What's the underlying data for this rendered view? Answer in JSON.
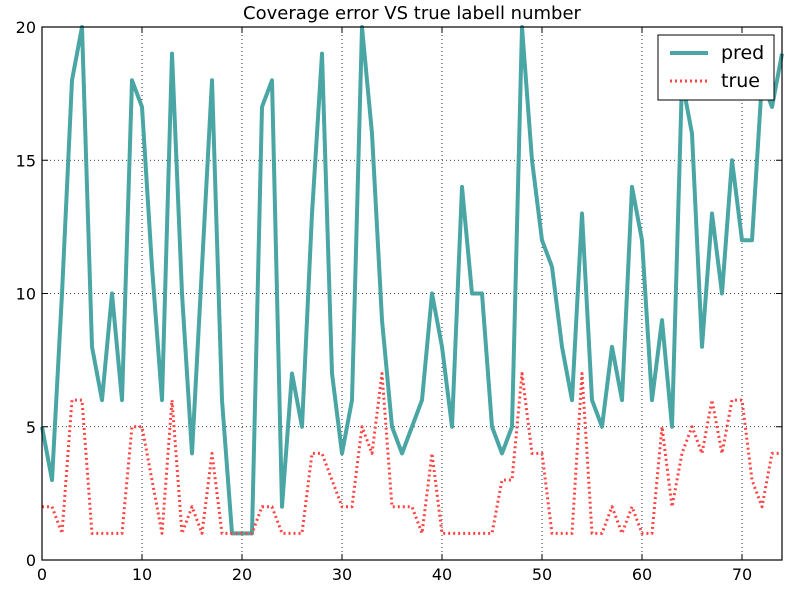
{
  "chart_data": {
    "type": "line",
    "title": "Coverage error VS true labell number",
    "xlabel": "",
    "ylabel": "",
    "xlim": [
      0,
      74
    ],
    "ylim": [
      0,
      20
    ],
    "xticks": [
      "0",
      "10",
      "20",
      "30",
      "40",
      "50",
      "60",
      "70"
    ],
    "yticks": [
      "0",
      "5",
      "10",
      "15",
      "20"
    ],
    "grid": true,
    "legend_position": "top-right",
    "series": [
      {
        "name": "pred",
        "color": "#4aa6a4",
        "line_style": "solid",
        "x": [
          0,
          1,
          2,
          3,
          4,
          5,
          6,
          7,
          8,
          9,
          10,
          11,
          12,
          13,
          14,
          15,
          16,
          17,
          18,
          19,
          20,
          21,
          22,
          23,
          24,
          25,
          26,
          27,
          28,
          29,
          30,
          31,
          32,
          33,
          34,
          35,
          36,
          37,
          38,
          39,
          40,
          41,
          42,
          43,
          44,
          45,
          46,
          47,
          48,
          49,
          50,
          51,
          52,
          53,
          54,
          55,
          56,
          57,
          58,
          59,
          60,
          61,
          62,
          63,
          64,
          65,
          66,
          67,
          68,
          69,
          70,
          71,
          72,
          73,
          74
        ],
        "values": [
          5,
          3,
          10,
          18,
          20,
          8,
          6,
          10,
          6,
          18,
          17,
          11,
          6,
          19,
          10,
          4,
          11,
          18,
          6,
          1,
          1,
          1,
          17,
          18,
          2,
          7,
          5,
          13,
          19,
          7,
          4,
          6,
          20,
          16,
          9,
          5,
          4,
          5,
          6,
          10,
          8,
          5,
          14,
          10,
          10,
          5,
          4,
          5,
          20,
          15,
          12,
          11,
          8,
          6,
          13,
          6,
          5,
          8,
          6,
          14,
          12,
          6,
          9,
          5,
          18,
          16,
          8,
          13,
          10,
          15,
          12,
          12,
          18,
          17,
          19
        ]
      },
      {
        "name": "true",
        "color": "#ff4444",
        "line_style": "dotted",
        "x": [
          0,
          1,
          2,
          3,
          4,
          5,
          6,
          7,
          8,
          9,
          10,
          11,
          12,
          13,
          14,
          15,
          16,
          17,
          18,
          19,
          20,
          21,
          22,
          23,
          24,
          25,
          26,
          27,
          28,
          29,
          30,
          31,
          32,
          33,
          34,
          35,
          36,
          37,
          38,
          39,
          40,
          41,
          42,
          43,
          44,
          45,
          46,
          47,
          48,
          49,
          50,
          51,
          52,
          53,
          54,
          55,
          56,
          57,
          58,
          59,
          60,
          61,
          62,
          63,
          64,
          65,
          66,
          67,
          68,
          69,
          70,
          71,
          72,
          73,
          74
        ],
        "values": [
          2,
          2,
          1,
          6,
          6,
          1,
          1,
          1,
          1,
          5,
          5,
          3,
          1,
          6,
          1,
          2,
          1,
          4,
          1,
          1,
          1,
          1,
          2,
          2,
          1,
          1,
          1,
          4,
          4,
          3,
          2,
          2,
          5,
          4,
          7,
          2,
          2,
          2,
          1,
          4,
          1,
          1,
          1,
          1,
          1,
          1,
          3,
          3,
          7,
          4,
          4,
          1,
          1,
          1,
          7,
          1,
          1,
          2,
          1,
          2,
          1,
          1,
          5,
          2,
          4,
          5,
          4,
          6,
          4,
          6,
          6,
          3,
          2,
          4,
          4
        ]
      }
    ]
  }
}
